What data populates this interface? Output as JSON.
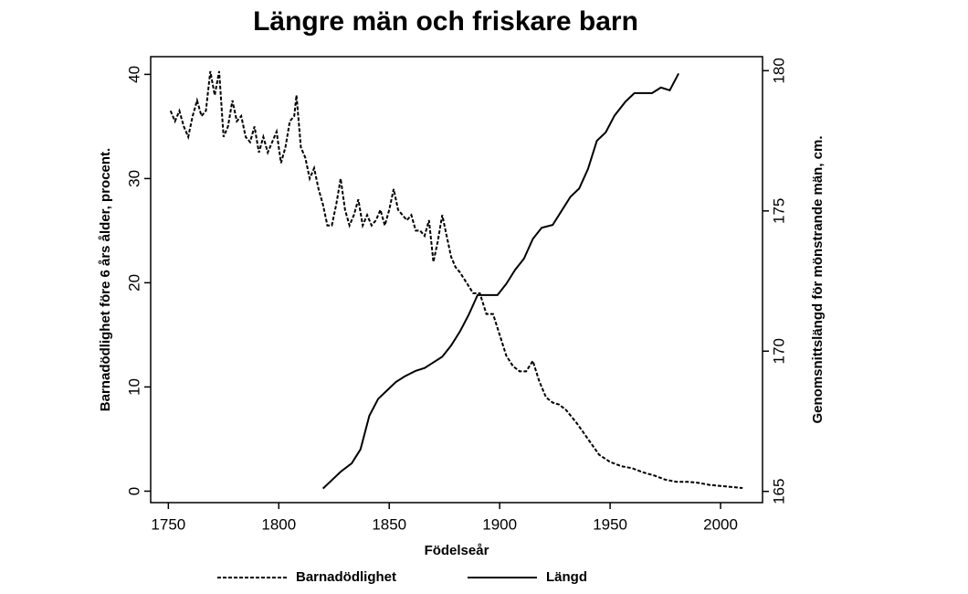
{
  "chart_data": {
    "type": "line",
    "title": "Längre män och friskare barn",
    "xlabel": "Födelseår",
    "ylabel": "Barnadödlighet före 6 års ålder, procent.",
    "y2label": "Genomsnittslängd för mönstrande män, cm.",
    "xlim": [
      1742,
      2019
    ],
    "ylim": [
      -1.1,
      41.7
    ],
    "y2lim": [
      164.6,
      180.5
    ],
    "xticks": [
      1750,
      1800,
      1850,
      1900,
      1950,
      2000
    ],
    "yticks": [
      0,
      10,
      20,
      30,
      40
    ],
    "y2ticks": [
      165,
      170,
      175,
      180
    ],
    "legend": "bottom",
    "series": [
      {
        "name": "Barnadödlighet",
        "color": "#000000",
        "style": "dashed",
        "x": [
          1751,
          1753,
          1755,
          1757,
          1759,
          1761,
          1763,
          1765,
          1767,
          1769,
          1771,
          1773,
          1775,
          1777,
          1779,
          1781,
          1783,
          1785,
          1787,
          1789,
          1791,
          1793,
          1795,
          1797,
          1799,
          1801,
          1803,
          1805,
          1807,
          1808,
          1810,
          1812,
          1814,
          1816,
          1818,
          1820,
          1822,
          1824,
          1826,
          1828,
          1830,
          1832,
          1834,
          1836,
          1838,
          1840,
          1842,
          1844,
          1846,
          1848,
          1850,
          1852,
          1854,
          1856,
          1858,
          1860,
          1862,
          1864,
          1866,
          1868,
          1870,
          1872,
          1874,
          1876,
          1878,
          1880,
          1882,
          1885,
          1888,
          1891,
          1894,
          1897,
          1900,
          1903,
          1906,
          1909,
          1912,
          1915,
          1918,
          1921,
          1924,
          1927,
          1930,
          1935,
          1940,
          1945,
          1950,
          1955,
          1960,
          1965,
          1970,
          1975,
          1980,
          1985,
          1990,
          1995,
          2000,
          2005,
          2010
        ],
        "values": [
          36.5,
          35.5,
          36.5,
          35,
          34,
          36,
          37.5,
          36,
          36.5,
          40.3,
          38,
          40.3,
          34,
          35,
          37.5,
          35.5,
          36,
          34,
          33.5,
          35,
          32.5,
          34,
          32.5,
          33.5,
          34.5,
          31.5,
          33,
          35.5,
          36,
          38,
          33,
          32,
          30,
          31,
          29,
          27.5,
          25.5,
          25.5,
          27.5,
          30,
          27,
          25.5,
          26.5,
          28,
          25.5,
          26.5,
          25.5,
          26,
          27,
          25.5,
          27,
          29,
          27,
          26.5,
          26,
          26.5,
          25,
          25,
          24.5,
          26,
          22,
          24,
          26.5,
          24.5,
          22.5,
          21.5,
          21,
          20,
          19,
          19,
          17,
          17,
          15,
          13,
          12,
          11.5,
          11.5,
          12.5,
          10.5,
          9,
          8.5,
          8.3,
          7.8,
          6.5,
          5,
          3.5,
          2.8,
          2.4,
          2.2,
          1.8,
          1.5,
          1.1,
          0.9,
          0.9,
          0.8,
          0.6,
          0.5,
          0.4,
          0.3
        ]
      },
      {
        "name": "Längd",
        "color": "#000000",
        "style": "solid",
        "axis": "y2",
        "x": [
          1820,
          1824,
          1828,
          1833,
          1837,
          1841,
          1845,
          1849,
          1853,
          1857,
          1862,
          1866,
          1870,
          1874,
          1878,
          1882,
          1886,
          1890,
          1895,
          1899,
          1903,
          1907,
          1911,
          1915,
          1919,
          1924,
          1928,
          1932,
          1936,
          1940,
          1944,
          1948,
          1952,
          1957,
          1961,
          1965,
          1969,
          1973,
          1977,
          1981
        ],
        "values": [
          165.1,
          165.4,
          165.7,
          166.0,
          166.5,
          167.7,
          168.3,
          168.6,
          168.9,
          169.1,
          169.3,
          169.4,
          169.6,
          169.8,
          170.2,
          170.7,
          171.3,
          172.0,
          172.0,
          172.0,
          172.4,
          172.9,
          173.3,
          174.0,
          174.4,
          174.5,
          175.0,
          175.5,
          175.8,
          176.5,
          177.5,
          177.8,
          178.4,
          178.9,
          179.2,
          179.2,
          179.2,
          179.4,
          179.3,
          179.9
        ]
      }
    ]
  }
}
